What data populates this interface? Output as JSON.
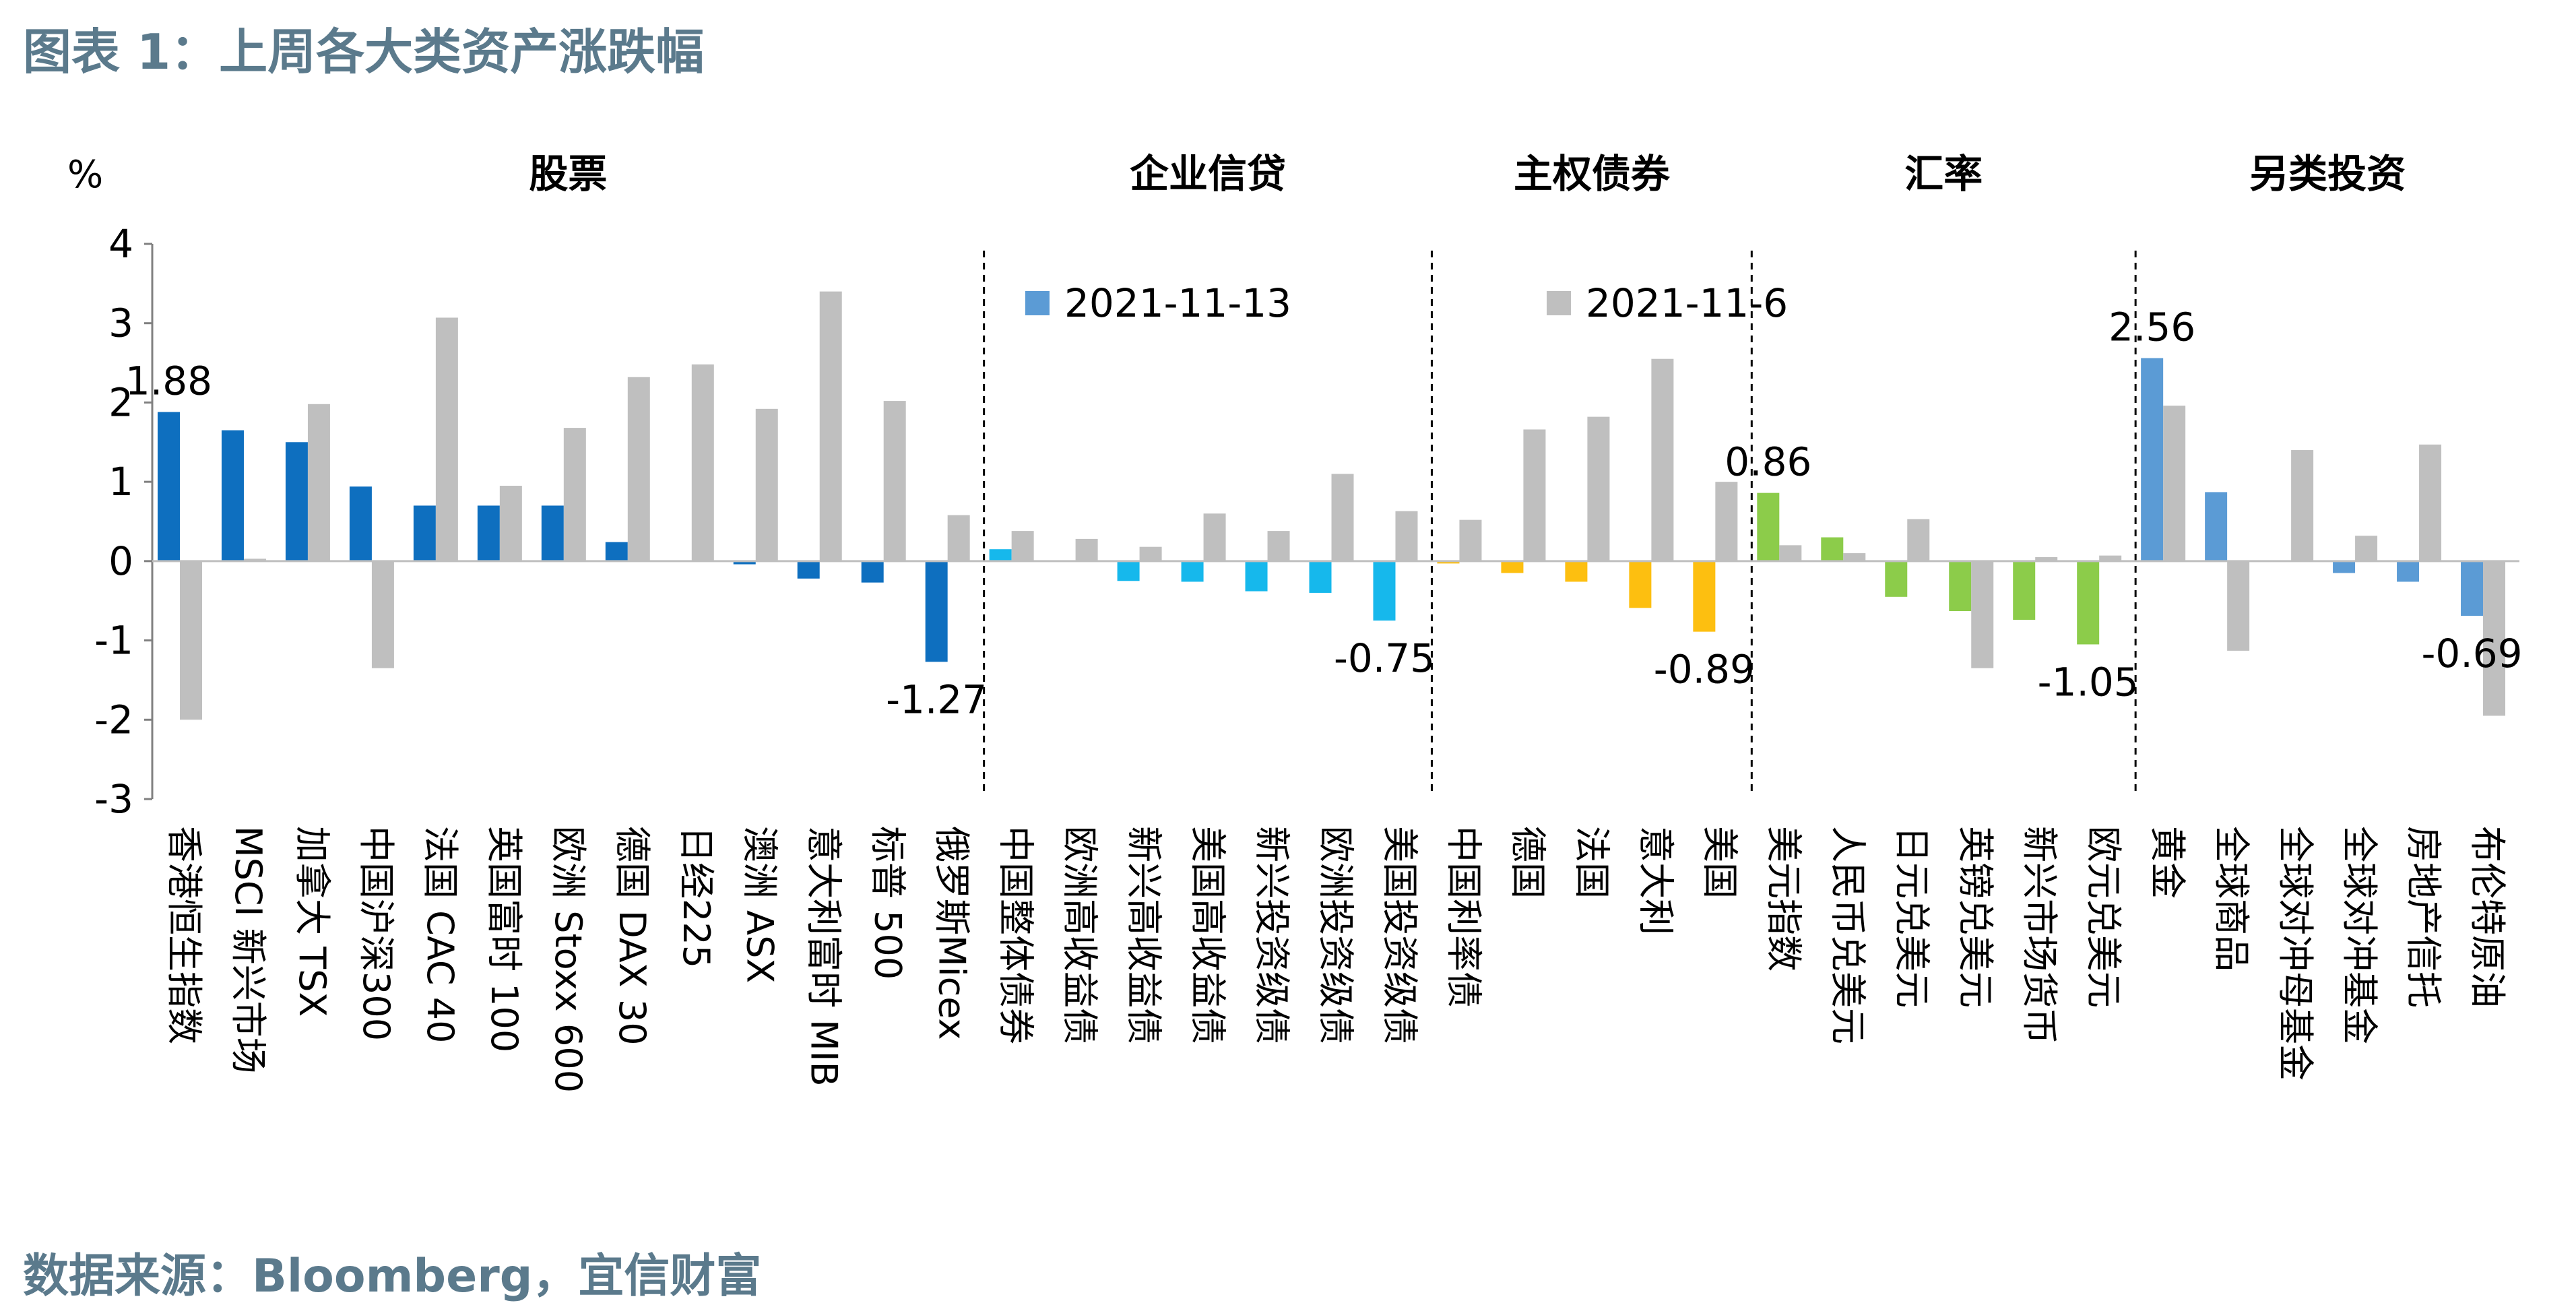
{
  "title": "图表 1：上周各大类资产涨跌幅",
  "source": "数据来源：Bloomberg，宜信财富",
  "chart_data": {
    "type": "bar",
    "ylabel": "%",
    "ylim": [
      -3,
      4
    ],
    "yticks": [
      4,
      3,
      2,
      1,
      0,
      -1,
      -2,
      -3
    ],
    "grid": false,
    "legend_position": "top-center",
    "series": [
      {
        "name": "2021-11-13",
        "values": [
          1.88,
          1.65,
          1.5,
          0.94,
          0.7,
          0.7,
          0.7,
          0.24,
          0.0,
          -0.04,
          -0.22,
          -0.27,
          -1.27,
          0.15,
          0.0,
          -0.25,
          -0.26,
          -0.38,
          -0.4,
          -0.75,
          -0.03,
          -0.15,
          -0.26,
          -0.59,
          -0.89,
          0.86,
          0.3,
          -0.45,
          -0.63,
          -0.74,
          -1.05,
          2.56,
          0.87,
          0.0,
          -0.15,
          -0.26,
          -0.69
        ]
      },
      {
        "name": "2021-11-6",
        "values": [
          -2.0,
          0.03,
          1.98,
          -1.35,
          3.07,
          0.95,
          1.68,
          2.32,
          2.48,
          1.92,
          3.4,
          2.02,
          0.58,
          0.38,
          0.28,
          0.18,
          0.6,
          0.38,
          1.1,
          0.63,
          0.52,
          1.66,
          1.82,
          2.55,
          1.0,
          0.2,
          0.1,
          0.53,
          -1.35,
          0.05,
          0.07,
          1.96,
          -1.13,
          1.4,
          0.32,
          1.47,
          -1.95
        ]
      }
    ],
    "categories": [
      "香港恒生指数",
      "MSCI 新兴市场",
      "加拿大 TSX",
      "中国沪深300",
      "法国 CAC 40",
      "英国富时 100",
      "欧洲 Stoxx 600",
      "德国 DAX 30",
      "日经225",
      "澳洲 ASX",
      "意大利富时 MIB",
      "标普 500",
      "俄罗斯Micex",
      "中国整体债券",
      "欧洲高收益债",
      "新兴高收益债",
      "美国高收益债",
      "新兴投资级债",
      "欧洲投资级债",
      "美国投资级债",
      "中国利率债",
      "德国",
      "法国",
      "意大利",
      "美国",
      "美元指数",
      "人民币兑美元",
      "日元兑美元",
      "英镑兑美元",
      "新兴市场货币",
      "欧元兑美元",
      "黄金",
      "全球商品",
      "全球对冲母基金",
      "全球对冲基金",
      "房地产信托",
      "布伦特原油"
    ],
    "groups": [
      {
        "name": "股票",
        "start": 0,
        "end": 12,
        "color": "#0e6fbf"
      },
      {
        "name": "企业信贷",
        "start": 13,
        "end": 19,
        "color": "#16b8ec"
      },
      {
        "name": "主权债券",
        "start": 20,
        "end": 24,
        "color": "#fdbf10"
      },
      {
        "name": "汇率",
        "start": 25,
        "end": 30,
        "color": "#8ccc4a"
      },
      {
        "name": "另类投资",
        "start": 31,
        "end": 36,
        "color": "#5b9bd5"
      }
    ],
    "series2_color": "#bfbfbf",
    "data_labels": [
      {
        "index": 0,
        "text": "1.88"
      },
      {
        "index": 12,
        "text": "-1.27"
      },
      {
        "index": 19,
        "text": "-0.75"
      },
      {
        "index": 24,
        "text": "-0.89"
      },
      {
        "index": 25,
        "text": "0.86"
      },
      {
        "index": 30,
        "text": "-1.05"
      },
      {
        "index": 31,
        "text": "2.56"
      },
      {
        "index": 36,
        "text": "-0.69"
      }
    ]
  }
}
